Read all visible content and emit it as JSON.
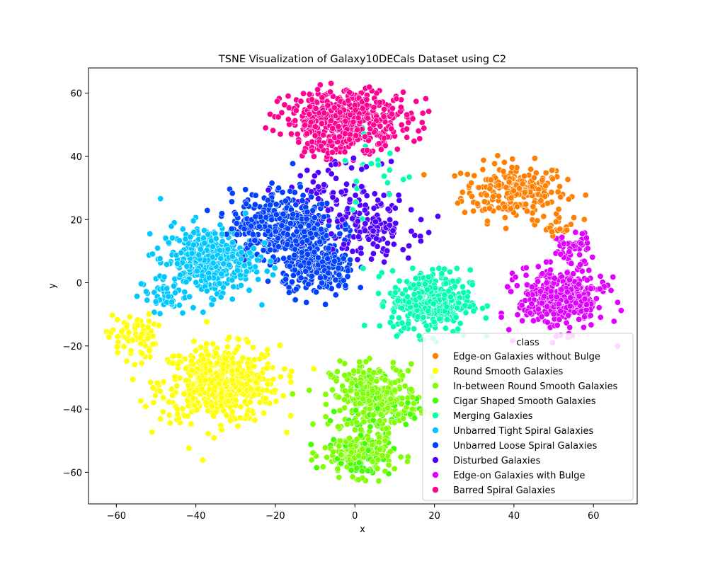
{
  "chart_data": {
    "type": "scatter",
    "title": "TSNE Visualization of Galaxy10DECals Dataset using C2",
    "xlabel": "x",
    "ylabel": "y",
    "xlim": [
      -67,
      71
    ],
    "ylim": [
      -70,
      68
    ],
    "xticks": [
      -60,
      -40,
      -20,
      0,
      20,
      40,
      60
    ],
    "yticks": [
      -60,
      -40,
      -20,
      0,
      20,
      40,
      60
    ],
    "grid": false,
    "legend": {
      "title": "class",
      "placement": "lower-right"
    },
    "series": [
      {
        "name": "Edge-on Galaxies without Bulge",
        "color": "#ff8000",
        "clusters": [
          {
            "cx": 40,
            "cy": 29,
            "sx": 6.5,
            "sy": 4.5,
            "n": 230
          },
          {
            "cx": 51,
            "cy": 18,
            "sx": 2,
            "sy": 1.5,
            "n": 20
          }
        ]
      },
      {
        "name": "Round Smooth Galaxies",
        "color": "#ffff00",
        "clusters": [
          {
            "cx": -34,
            "cy": -32,
            "sx": 7.5,
            "sy": 6,
            "n": 520
          },
          {
            "cx": -56,
            "cy": -17,
            "sx": 3,
            "sy": 3.5,
            "n": 70
          }
        ]
      },
      {
        "name": "In-between Round Smooth Galaxies",
        "color": "#80ff00",
        "clusters": [
          {
            "cx": 5,
            "cy": -36,
            "sx": 5.5,
            "sy": 5,
            "n": 300
          },
          {
            "cx": 1,
            "cy": -54,
            "sx": 4.5,
            "sy": 3.5,
            "n": 180
          }
        ]
      },
      {
        "name": "Cigar Shaped Smooth Galaxies",
        "color": "#40ff00",
        "clusters": [
          {
            "cx": 6,
            "cy": -40,
            "sx": 5,
            "sy": 4,
            "n": 70
          },
          {
            "cx": 1,
            "cy": -55,
            "sx": 4,
            "sy": 3,
            "n": 50
          }
        ]
      },
      {
        "name": "Merging Galaxies",
        "color": "#00ffb0",
        "clusters": [
          {
            "cx": 19,
            "cy": -6,
            "sx": 5,
            "sy": 5,
            "n": 380
          },
          {
            "cx": 5,
            "cy": 35,
            "sx": 5,
            "sy": 9,
            "n": 25
          }
        ]
      },
      {
        "name": "Unbarred Tight Spiral Galaxies",
        "color": "#00c8ff",
        "clusters": [
          {
            "cx": -37,
            "cy": 7,
            "sx": 6,
            "sy": 5.5,
            "n": 380
          },
          {
            "cx": -48,
            "cy": -4,
            "sx": 3,
            "sy": 2.5,
            "n": 40
          }
        ]
      },
      {
        "name": "Unbarred Loose Spiral Galaxies",
        "color": "#0040ff",
        "clusters": [
          {
            "cx": -18,
            "cy": 18,
            "sx": 6.5,
            "sy": 5.5,
            "n": 420
          },
          {
            "cx": -9,
            "cy": 4,
            "sx": 4.5,
            "sy": 4,
            "n": 220
          }
        ]
      },
      {
        "name": "Disturbed Galaxies",
        "color": "#5000ff",
        "clusters": [
          {
            "cx": 3,
            "cy": 18,
            "sx": 6,
            "sy": 5,
            "n": 140
          },
          {
            "cx": -5,
            "cy": 30,
            "sx": 6,
            "sy": 4,
            "n": 60
          }
        ]
      },
      {
        "name": "Edge-on Galaxies with Bulge",
        "color": "#e000ff",
        "clusters": [
          {
            "cx": 52,
            "cy": -5,
            "sx": 5.5,
            "sy": 5,
            "n": 370
          },
          {
            "cx": 54,
            "cy": 11,
            "sx": 2.5,
            "sy": 2.5,
            "n": 45
          }
        ]
      },
      {
        "name": "Barred Spiral Galaxies",
        "color": "#ff0090",
        "clusters": [
          {
            "cx": -2,
            "cy": 52,
            "sx": 8,
            "sy": 4.5,
            "n": 470
          },
          {
            "cx": -7,
            "cy": 43,
            "sx": 3,
            "sy": 2.5,
            "n": 40
          }
        ]
      }
    ]
  }
}
